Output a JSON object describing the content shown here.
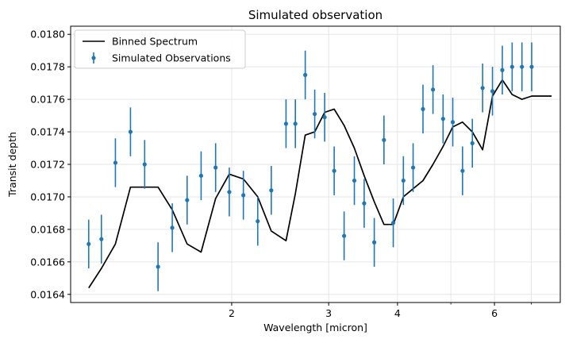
{
  "chart_data": {
    "type": "line",
    "title": "Simulated observation",
    "xlabel": "Wavelength [micron]",
    "ylabel": "Transit depth",
    "x_scale": "log",
    "xlim": [
      1.02,
      7.9
    ],
    "ylim": [
      0.01635,
      0.01805
    ],
    "grid": true,
    "legend_position": "top-left",
    "x_ticks": [
      2,
      3,
      4,
      6
    ],
    "x_minor_ticks": [
      5,
      7
    ],
    "y_ticks": [
      0.0164,
      0.0166,
      0.0168,
      0.017,
      0.0172,
      0.0174,
      0.0176,
      0.0178,
      0.018
    ],
    "y_tick_labels": [
      "0.0164",
      "0.0166",
      "0.0168",
      "0.0170",
      "0.0172",
      "0.0174",
      "0.0176",
      "0.0178",
      "0.0180"
    ],
    "colors": {
      "binned": "#000000",
      "observations": "#1f77b4",
      "grid": "#e6e6e6"
    },
    "series": [
      {
        "name": "Binned Spectrum",
        "kind": "line",
        "x": [
          1.1,
          1.16,
          1.23,
          1.31,
          1.39,
          1.47,
          1.56,
          1.66,
          1.76,
          1.87,
          1.98,
          2.1,
          2.23,
          2.36,
          2.51,
          2.61,
          2.72,
          2.83,
          2.95,
          3.07,
          3.2,
          3.34,
          3.48,
          3.63,
          3.78,
          3.93,
          4.1,
          4.27,
          4.45,
          4.64,
          4.84,
          5.04,
          5.25,
          5.47,
          5.71,
          5.95,
          6.2,
          6.46,
          6.73,
          7.01,
          7.31,
          7.62
        ],
        "values": [
          0.01644,
          0.01656,
          0.01671,
          0.01706,
          0.01706,
          0.01706,
          0.01692,
          0.01671,
          0.01666,
          0.01699,
          0.01714,
          0.01711,
          0.017,
          0.01679,
          0.01673,
          0.01702,
          0.01738,
          0.0174,
          0.01752,
          0.01754,
          0.01744,
          0.0173,
          0.01713,
          0.01697,
          0.01683,
          0.01683,
          0.017,
          0.01705,
          0.0171,
          0.0172,
          0.01731,
          0.01743,
          0.01746,
          0.0174,
          0.01729,
          0.01762,
          0.01772,
          0.01763,
          0.0176,
          0.01762,
          0.01762,
          0.01762
        ]
      },
      {
        "name": "Simulated Observations",
        "kind": "errorbar",
        "x": [
          1.1,
          1.16,
          1.23,
          1.31,
          1.39,
          1.47,
          1.56,
          1.66,
          1.76,
          1.87,
          1.98,
          2.1,
          2.23,
          2.36,
          2.51,
          2.61,
          2.72,
          2.83,
          2.95,
          3.07,
          3.2,
          3.34,
          3.48,
          3.63,
          3.78,
          3.93,
          4.1,
          4.27,
          4.45,
          4.64,
          4.84,
          5.04,
          5.25,
          5.47,
          5.71,
          5.95,
          6.2,
          6.46,
          6.73,
          7.01
        ],
        "values": [
          0.01671,
          0.01674,
          0.01721,
          0.0174,
          0.0172,
          0.01657,
          0.01681,
          0.01698,
          0.01713,
          0.01718,
          0.01703,
          0.01701,
          0.01685,
          0.01704,
          0.01745,
          0.01745,
          0.01775,
          0.01751,
          0.01749,
          0.01716,
          0.01676,
          0.0171,
          0.01696,
          0.01672,
          0.01735,
          0.01684,
          0.0171,
          0.01718,
          0.01754,
          0.01766,
          0.01748,
          0.01746,
          0.01716,
          0.01733,
          0.01767,
          0.01765,
          0.01778,
          0.0178,
          0.0178,
          0.0178
        ],
        "error": 0.00015
      }
    ]
  }
}
